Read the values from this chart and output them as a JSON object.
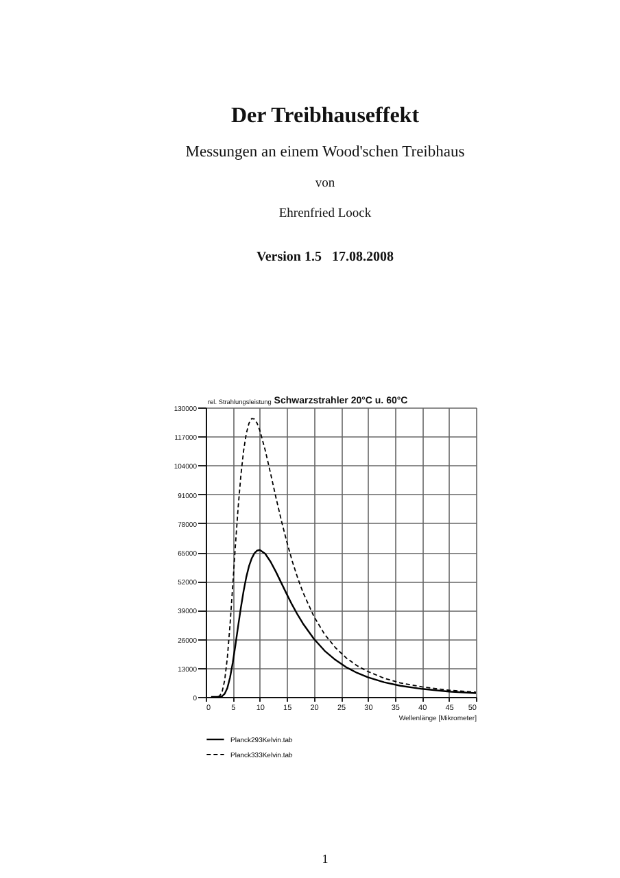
{
  "chart_data": {
    "type": "line",
    "title": "Schwarzstrahler 20°C u. 60°C",
    "xlabel": "Wellenlänge [Mikrometer]",
    "ylabel": "rel. Strahlungsleistung",
    "x": [
      1,
      2,
      2.5,
      3,
      3.5,
      4,
      4.5,
      5,
      5.5,
      6,
      6.5,
      7,
      7.5,
      8,
      8.5,
      9,
      9.5,
      10,
      11,
      12,
      13,
      14,
      15,
      16,
      17,
      18,
      20,
      22,
      24,
      26,
      28,
      30,
      33,
      36,
      40,
      45,
      50
    ],
    "series": [
      {
        "name": "Planck293Kelvin.tab",
        "color": "#000000",
        "line_style": "solid",
        "values": [
          0,
          0,
          0,
          300,
          1400,
          4000,
          8800,
          15400,
          23400,
          31900,
          40100,
          47500,
          53800,
          58700,
          62200,
          64500,
          65700,
          66000,
          64300,
          60700,
          56100,
          51100,
          46100,
          41300,
          36900,
          32900,
          26100,
          20700,
          16600,
          13300,
          10800,
          8800,
          6600,
          5000,
          3600,
          2400,
          1700
        ]
      },
      {
        "name": "Planck333Kelvin.tab",
        "color": "#000000",
        "line_style": "dashed",
        "values": [
          0,
          0,
          300,
          2000,
          7400,
          17700,
          32600,
          50200,
          68500,
          85300,
          99500,
          110500,
          118300,
          122900,
          125000,
          124800,
          122900,
          119700,
          110800,
          100300,
          89400,
          79100,
          69600,
          61000,
          53500,
          46900,
          36200,
          28100,
          22100,
          17500,
          14000,
          11400,
          8400,
          6300,
          4500,
          3000,
          2100
        ]
      }
    ],
    "xlim": [
      0,
      50
    ],
    "xticks": [
      0,
      5,
      10,
      15,
      20,
      25,
      30,
      35,
      40,
      45,
      50
    ],
    "ylim": [
      0,
      130000
    ],
    "yticks": [
      0,
      13000,
      26000,
      39000,
      52000,
      65000,
      78000,
      91000,
      104000,
      117000,
      130000
    ],
    "grid": true,
    "legend": "bottom",
    "annotations": [
      "Der Treibhauseffekt",
      "Messungen an einem Wood'schen Treibhaus",
      "von",
      "Ehrenfried Loock",
      "Version 1.5   17.08.2008",
      "1"
    ]
  }
}
